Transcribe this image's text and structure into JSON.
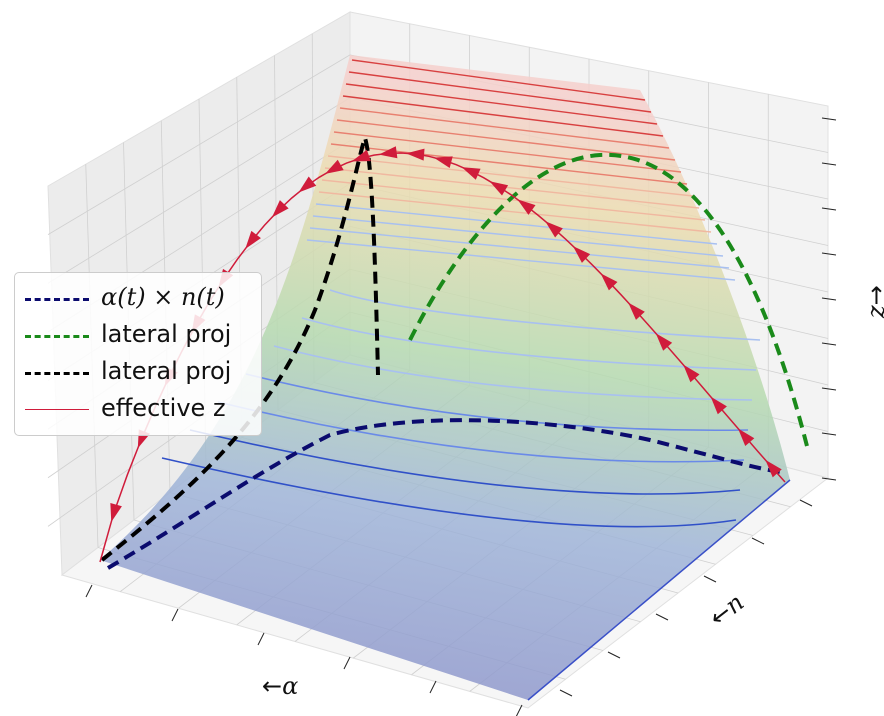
{
  "chart_data": {
    "type": "surface3d",
    "title": "",
    "axes": {
      "x": {
        "label": "←α",
        "label_text": "←",
        "label_symbol": "α"
      },
      "y": {
        "label": "←n",
        "label_text": "←",
        "label_symbol": "n"
      },
      "z": {
        "label": "z→",
        "label_symbol": "z",
        "label_text": "→"
      }
    },
    "grid": true,
    "legend_placement": "center-left",
    "legend": [
      {
        "label": "α(t) × n(t)",
        "label_main": "α(t) × n(t)",
        "color": "#0b0b6e",
        "style": "dashed"
      },
      {
        "label": "lateral proj",
        "color": "#1a8a1a",
        "style": "dashed"
      },
      {
        "label": "lateral proj",
        "color": "#000000",
        "style": "dashed"
      },
      {
        "label": "effective z",
        "color": "#d01c3b",
        "style": "solid"
      }
    ],
    "surface_colormap": [
      "#6b6bbd",
      "#8fb0d6",
      "#a8d6a8",
      "#e8d8a8",
      "#f0a0a0"
    ],
    "contour_colors": [
      "#3050c8",
      "#6a8ae8",
      "#a8c0f0",
      "#f0b8a0",
      "#e88070",
      "#d84040"
    ]
  }
}
